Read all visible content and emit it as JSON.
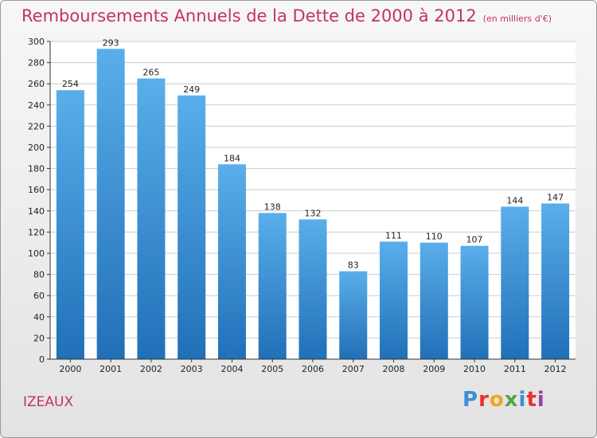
{
  "title": "Remboursements Annuels de la Dette de 2000 à 2012",
  "unit": "(en milliers d'€)",
  "commune": "IZEAUX",
  "logo": {
    "text": "Proxiti",
    "letters": [
      "P",
      "r",
      "o",
      "x",
      "i",
      "t",
      "i"
    ],
    "letter_colors": [
      "#3b8fd6",
      "#e8312f",
      "#f3a51c",
      "#4ea83d",
      "#3b8fd6",
      "#e8312f",
      "#9b3fa6"
    ]
  },
  "colors": {
    "title": "#c2316f",
    "bar_top": "#5aaeea",
    "bar_bottom": "#2070b8",
    "grid": "#cccccc",
    "axis": "#333333",
    "label": "#222222"
  },
  "chart_data": {
    "type": "bar",
    "categories": [
      "2000",
      "2001",
      "2002",
      "2003",
      "2004",
      "2005",
      "2006",
      "2007",
      "2008",
      "2009",
      "2010",
      "2011",
      "2012"
    ],
    "values": [
      254,
      293,
      265,
      249,
      184,
      138,
      132,
      83,
      111,
      110,
      107,
      144,
      147
    ],
    "ylim": [
      0,
      300
    ],
    "yticks": [
      0,
      20,
      40,
      60,
      80,
      100,
      120,
      140,
      160,
      180,
      200,
      220,
      240,
      260,
      280,
      300
    ],
    "grid": true,
    "data_labels": true
  }
}
